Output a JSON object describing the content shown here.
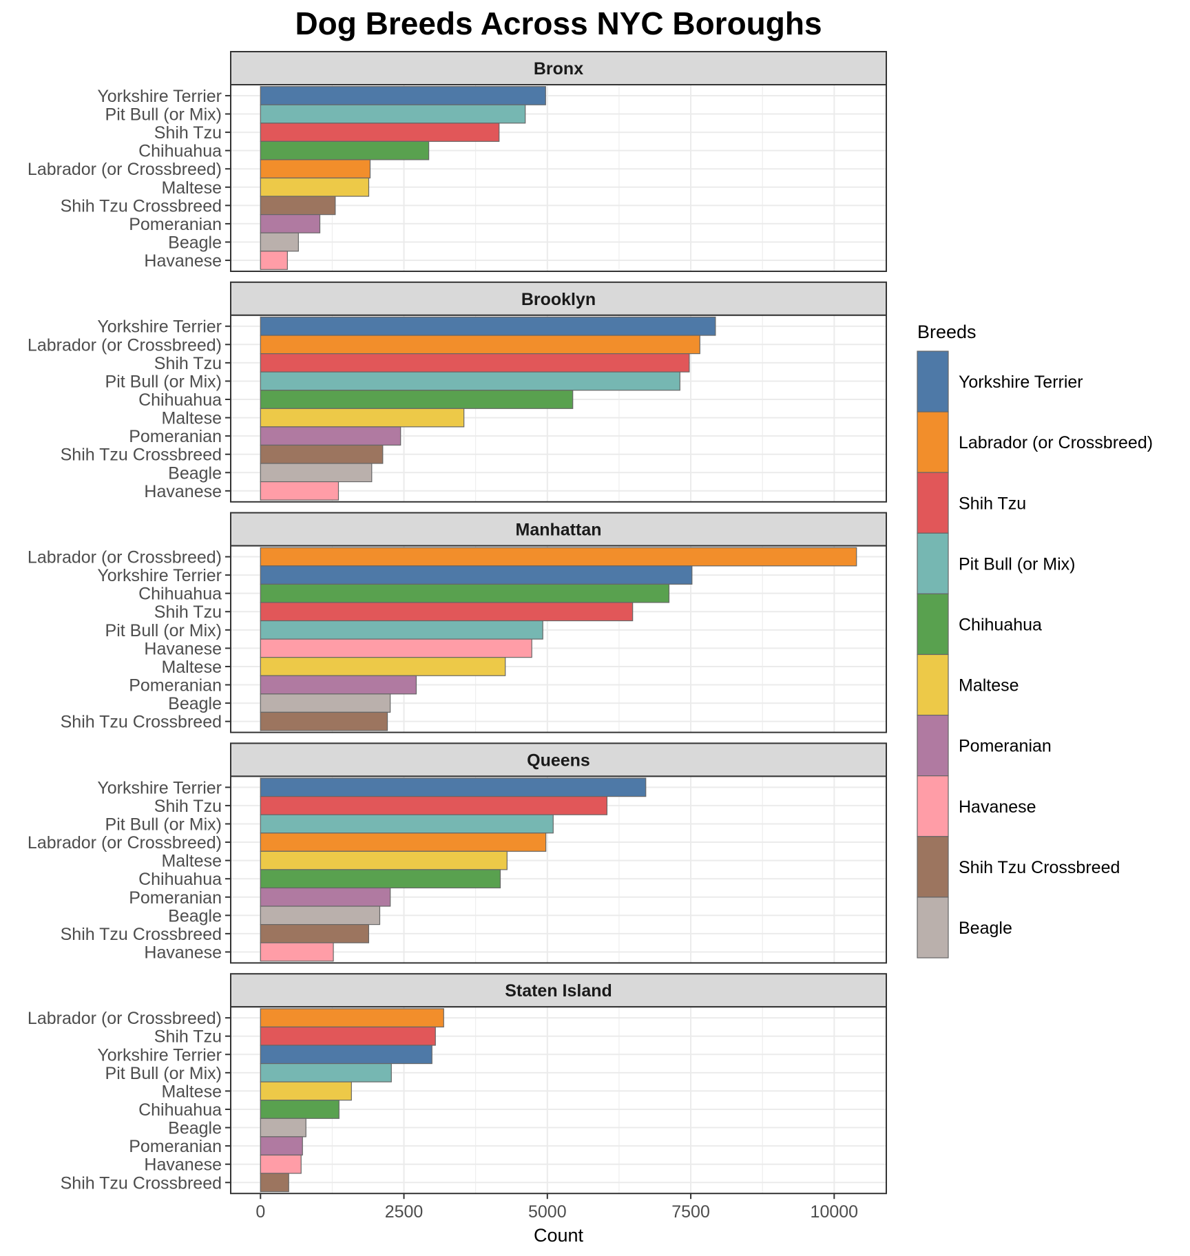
{
  "chart_data": {
    "type": "bar",
    "orientation": "horizontal",
    "faceted": true,
    "title": "Dog Breeds Across NYC Boroughs",
    "xlabel": "Count",
    "ylabel": "",
    "xlim": [
      0,
      10389
    ],
    "x_ticks": [
      0,
      2500,
      5000,
      7500,
      10000
    ],
    "x_tick_labels": [
      "0",
      "2500",
      "5000",
      "7500",
      "10000"
    ],
    "grid": true,
    "legend": {
      "title": "Breeds",
      "placement": "right",
      "entries": [
        {
          "name": "Yorkshire Terrier",
          "color": "#4E79A7"
        },
        {
          "name": "Labrador (or Crossbreed)",
          "color": "#F28E2B"
        },
        {
          "name": "Shih Tzu",
          "color": "#E15759"
        },
        {
          "name": "Pit Bull (or Mix)",
          "color": "#76B7B2"
        },
        {
          "name": "Chihuahua",
          "color": "#59A14F"
        },
        {
          "name": "Maltese",
          "color": "#EDC948"
        },
        {
          "name": "Pomeranian",
          "color": "#B07AA1"
        },
        {
          "name": "Havanese",
          "color": "#FF9DA7"
        },
        {
          "name": "Shih Tzu Crossbreed",
          "color": "#9C755F"
        },
        {
          "name": "Beagle",
          "color": "#BAB0AC"
        }
      ]
    },
    "panels": [
      {
        "borough": "Bronx",
        "categories": [
          "Yorkshire Terrier",
          "Pit Bull (or Mix)",
          "Shih Tzu",
          "Chihuahua",
          "Labrador (or Crossbreed)",
          "Maltese",
          "Shih Tzu Crossbreed",
          "Pomeranian",
          "Beagle",
          "Havanese"
        ],
        "values": [
          4970,
          4615,
          4159,
          2933,
          1911,
          1887,
          1303,
          1035,
          661,
          469
        ]
      },
      {
        "borough": "Brooklyn",
        "categories": [
          "Yorkshire Terrier",
          "Labrador (or Crossbreed)",
          "Shih Tzu",
          "Pit Bull (or Mix)",
          "Chihuahua",
          "Maltese",
          "Pomeranian",
          "Shih Tzu Crossbreed",
          "Beagle",
          "Havanese"
        ],
        "values": [
          7930,
          7659,
          7474,
          7311,
          5443,
          3546,
          2442,
          2131,
          1939,
          1359
        ]
      },
      {
        "borough": "Manhattan",
        "categories": [
          "Labrador (or Crossbreed)",
          "Yorkshire Terrier",
          "Chihuahua",
          "Shih Tzu",
          "Pit Bull (or Mix)",
          "Havanese",
          "Maltese",
          "Pomeranian",
          "Beagle",
          "Shih Tzu Crossbreed"
        ],
        "values": [
          10389,
          7521,
          7121,
          6487,
          4921,
          4729,
          4267,
          2715,
          2261,
          2212
        ]
      },
      {
        "borough": "Queens",
        "categories": [
          "Yorkshire Terrier",
          "Shih Tzu",
          "Pit Bull (or Mix)",
          "Labrador (or Crossbreed)",
          "Maltese",
          "Chihuahua",
          "Pomeranian",
          "Beagle",
          "Shih Tzu Crossbreed",
          "Havanese"
        ],
        "values": [
          6716,
          6040,
          5102,
          4974,
          4298,
          4180,
          2262,
          2079,
          1886,
          1270
        ]
      },
      {
        "borough": "Staten Island",
        "categories": [
          "Labrador (or Crossbreed)",
          "Shih Tzu",
          "Yorkshire Terrier",
          "Pit Bull (or Mix)",
          "Maltese",
          "Chihuahua",
          "Beagle",
          "Pomeranian",
          "Havanese",
          "Shih Tzu Crossbreed"
        ],
        "values": [
          3193,
          3049,
          2989,
          2281,
          1585,
          1369,
          792,
          732,
          708,
          492
        ]
      }
    ]
  }
}
